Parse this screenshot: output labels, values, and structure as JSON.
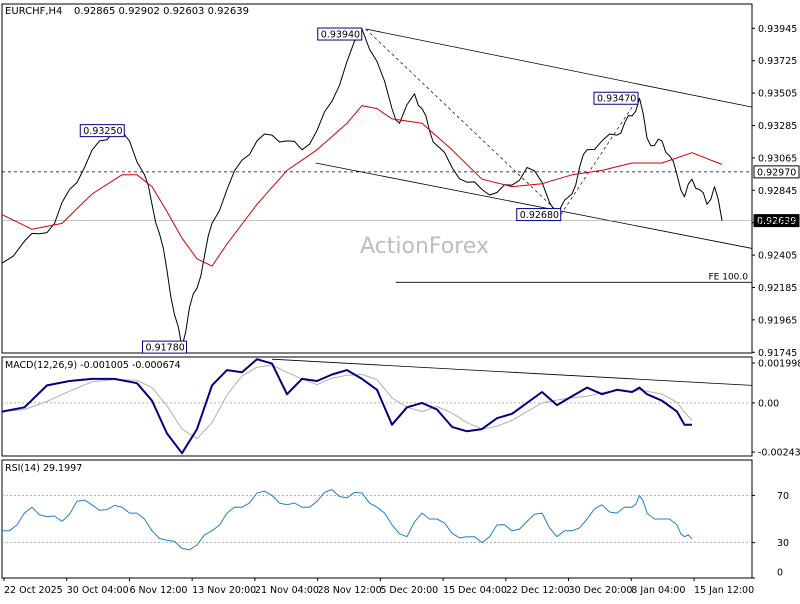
{
  "header": {
    "symbol": "EURCHF,H4",
    "ohlc": "0.92865 0.92902 0.92603 0.92639"
  },
  "watermark": "ActionForex",
  "colors": {
    "price": "#000000",
    "ma": "#d00000",
    "macd_line": "#000080",
    "macd_signal": "#b0b0b0",
    "rsi": "#1e7fd0",
    "label_border": "#000080",
    "grid_dotted": "#9a9a9a"
  },
  "chart_data": [
    {
      "type": "line",
      "panel": "price",
      "title": "EURCHF,H4",
      "ylim": [
        0.9174,
        0.9411
      ],
      "y_ticks": [
        "0.93945",
        "0.93725",
        "0.93505",
        "0.93285",
        "0.93065",
        "0.92845",
        "0.92625",
        "0.92405",
        "0.92185",
        "0.91965",
        "0.91745"
      ],
      "x_ticks": [
        "22 Oct 2025",
        "30 Oct 04:00",
        "6 Nov 12:00",
        "13 Nov 20:00",
        "21 Nov 04:00",
        "28 Nov 12:00",
        "5 Dec 20:00",
        "15 Dec 04:00",
        "22 Dec 12:00",
        "30 Dec 20:00",
        "8 Jan 04:00",
        "15 Jan 12:00"
      ],
      "x_range": [
        0,
        100
      ],
      "series": [
        {
          "values_x": [
            0,
            3,
            5,
            7,
            9,
            11,
            13,
            15,
            17,
            19,
            20,
            21,
            22,
            23,
            24,
            25,
            26,
            27,
            28,
            30,
            32,
            34,
            36,
            38,
            40,
            42,
            44,
            46,
            48,
            50,
            52,
            53,
            55,
            56,
            57,
            58,
            60,
            62,
            64,
            66,
            68,
            70,
            72,
            74,
            76,
            77,
            78,
            80,
            82,
            83,
            84,
            85,
            86,
            87,
            88,
            89,
            90,
            91,
            92,
            93,
            94,
            95,
            96
          ],
          "values_y": [
            0.9235,
            0.925,
            0.9255,
            0.9262,
            0.9285,
            0.93,
            0.9318,
            0.9325,
            0.9318,
            0.9295,
            0.9275,
            0.9255,
            0.923,
            0.92,
            0.9178,
            0.9205,
            0.9218,
            0.924,
            0.9262,
            0.9285,
            0.9305,
            0.9318,
            0.9322,
            0.9318,
            0.9312,
            0.9325,
            0.9345,
            0.9372,
            0.9394,
            0.9372,
            0.934,
            0.933,
            0.935,
            0.934,
            0.9325,
            0.9315,
            0.93,
            0.929,
            0.9285,
            0.9283,
            0.9288,
            0.93,
            0.929,
            0.9268,
            0.9282,
            0.93,
            0.9312,
            0.9318,
            0.9322,
            0.933,
            0.9335,
            0.9347,
            0.932,
            0.9315,
            0.9318,
            0.9308,
            0.9295,
            0.928,
            0.9292,
            0.9285,
            0.9275,
            0.9287,
            0.9264
          ]
        },
        {
          "name": "",
          "values_x": [
            0,
            4,
            8,
            12,
            16,
            18,
            20,
            22,
            24,
            26,
            28,
            30,
            34,
            38,
            42,
            46,
            48,
            50,
            52,
            56,
            60,
            64,
            68,
            72,
            76,
            80,
            84,
            88,
            92,
            96
          ],
          "values_y": [
            0.9268,
            0.9258,
            0.9262,
            0.9282,
            0.9295,
            0.9295,
            0.9287,
            0.927,
            0.9252,
            0.9238,
            0.9233,
            0.9248,
            0.9275,
            0.9298,
            0.9312,
            0.933,
            0.9342,
            0.934,
            0.9333,
            0.933,
            0.9312,
            0.9292,
            0.9287,
            0.9289,
            0.9295,
            0.9298,
            0.9303,
            0.9303,
            0.931,
            0.9302
          ]
        }
      ],
      "annotations": [
        {
          "text": "0.93940",
          "x": 48.5,
          "y": 0.9394
        },
        {
          "text": "0.93250",
          "x": 16.3,
          "y": 0.9325
        },
        {
          "text": "0.91780",
          "x": 24.6,
          "y": 0.9178
        },
        {
          "text": "0.92680",
          "x": 74.5,
          "y": 0.9268
        },
        {
          "text": "0.93470",
          "x": 84.8,
          "y": 0.9347
        },
        {
          "text": "0.92970",
          "x": 100,
          "y": 0.9297
        },
        {
          "text": "0.92639",
          "x": 100,
          "y": 0.92639
        }
      ],
      "fe_label": "FE 100.0",
      "fe_level": 0.9222,
      "current_price": "0.92639",
      "channel_upper": [
        [
          48.5,
          0.9394
        ],
        [
          100,
          0.9341
        ]
      ],
      "channel_lower": [
        [
          48.5,
          0.93
        ],
        [
          100,
          0.9245
        ]
      ],
      "grid": false
    },
    {
      "type": "line",
      "panel": "macd",
      "title": "MACD(12,26,9) -0.001005 -0.000674",
      "ylim": [
        -0.00243,
        0.0021
      ],
      "y_ticks": [
        "0.001998",
        "0.00",
        "-0.002434"
      ],
      "series": [
        {
          "values_x": [
            0,
            3,
            6,
            9,
            12,
            15,
            18,
            20,
            22,
            24,
            26,
            28,
            30,
            32,
            34,
            36,
            38,
            40,
            42,
            44,
            46,
            48,
            50,
            52,
            54,
            56,
            58,
            60,
            62,
            64,
            66,
            68,
            70,
            72,
            74,
            76,
            78,
            80,
            82,
            84,
            85,
            86,
            88,
            90,
            91,
            92
          ],
          "values_y": [
            -0.0004,
            -0.0002,
            0.0008,
            0.001,
            0.0011,
            0.0011,
            0.0009,
            0.0001,
            -0.0014,
            -0.0023,
            -0.0012,
            0.0008,
            0.0015,
            0.0014,
            0.002,
            0.0018,
            0.0004,
            0.0011,
            0.001,
            0.0013,
            0.0015,
            0.0011,
            0.0006,
            -0.001,
            -0.0002,
            0.0,
            -0.0003,
            -0.0011,
            -0.0013,
            -0.0012,
            -0.0007,
            -0.0005,
            0.0,
            0.0005,
            -0.0001,
            0.0003,
            0.0007,
            0.0004,
            0.0006,
            0.0005,
            0.0007,
            0.0004,
            0.0001,
            -0.0004,
            -0.001,
            -0.001
          ]
        }
      ],
      "trendline": [
        [
          36,
          0.002
        ],
        [
          100,
          0.0008
        ]
      ]
    },
    {
      "type": "line",
      "panel": "rsi",
      "title": "RSI(14) 29.1997",
      "ylim": [
        0,
        100
      ],
      "y_ticks": [
        "70",
        "30",
        "0"
      ],
      "hlines": [
        70,
        30
      ],
      "series": [
        {
          "values_x": [
            0,
            2,
            4,
            6,
            8,
            10,
            12,
            14,
            16,
            18,
            20,
            22,
            24,
            26,
            28,
            30,
            32,
            34,
            36,
            38,
            40,
            42,
            44,
            46,
            48,
            50,
            52,
            54,
            56,
            58,
            60,
            62,
            64,
            66,
            68,
            70,
            72,
            74,
            76,
            78,
            80,
            82,
            84,
            85,
            86,
            88,
            90,
            91,
            92
          ],
          "values_y": [
            40,
            45,
            60,
            52,
            48,
            65,
            62,
            58,
            60,
            55,
            40,
            32,
            25,
            28,
            40,
            55,
            60,
            72,
            70,
            62,
            60,
            65,
            75,
            68,
            72,
            60,
            45,
            35,
            55,
            50,
            38,
            35,
            30,
            45,
            40,
            48,
            55,
            35,
            40,
            50,
            62,
            55,
            60,
            70,
            55,
            50,
            45,
            35,
            33
          ]
        }
      ]
    }
  ]
}
